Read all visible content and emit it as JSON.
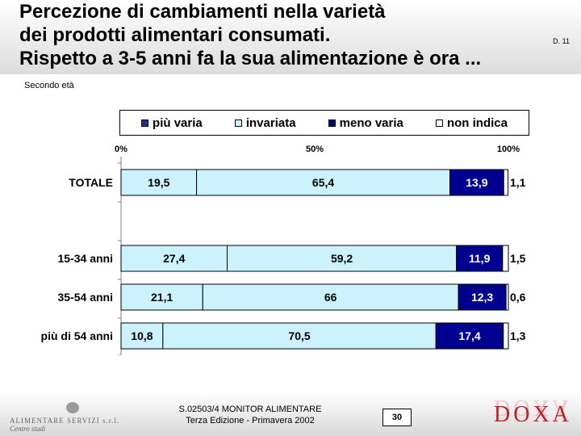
{
  "header": {
    "title_lines": [
      "Percezione di cambiamenti nella varietà",
      "dei prodotti alimentari consumati.",
      "Rispetto a 3-5 anni fa la sua alimentazione è ora ..."
    ],
    "code": "D. 11"
  },
  "subtitle": "Secondo età",
  "legend": [
    {
      "label": "più varia",
      "color": "#1f2fa0"
    },
    {
      "label": "invariata",
      "color": "#ccf2ff"
    },
    {
      "label": "meno varia",
      "color": "#000090"
    },
    {
      "label": "non indica",
      "color": "#ffffff"
    }
  ],
  "chart_data": {
    "type": "bar",
    "orientation": "horizontal",
    "stacked": true,
    "categories": [
      "TOTALE",
      "15-34 anni",
      "35-54 anni",
      "più di 54 anni"
    ],
    "series": [
      {
        "name": "più varia",
        "values": [
          19.5,
          27.4,
          21.1,
          10.8
        ],
        "labels": [
          "19,5",
          "27,4",
          "21,1",
          "10,8"
        ],
        "color": "#ccf2ff"
      },
      {
        "name": "invariata",
        "values": [
          65.4,
          59.2,
          66,
          70.5
        ],
        "labels": [
          "65,4",
          "59,2",
          "66",
          "70,5"
        ],
        "color": "#ccf2ff"
      },
      {
        "name": "meno varia",
        "values": [
          13.9,
          11.9,
          12.3,
          17.4
        ],
        "labels": [
          "13,9",
          "11,9",
          "12,3",
          "17,4"
        ],
        "color": "#000090"
      },
      {
        "name": "non indica",
        "values": [
          1.1,
          1.5,
          0.6,
          1.3
        ],
        "labels": [
          "1,1",
          "1,5",
          "0,6",
          "1,3"
        ],
        "color": "#ffffff"
      }
    ],
    "xlim": [
      0,
      100
    ],
    "xticks": [
      "0%",
      "50%",
      "100%"
    ],
    "legend_position": "top"
  },
  "footer": {
    "logo_name": "ALIMENTARE SERVIZI s.r.l.",
    "logo_sub": "Centro studi",
    "source_line1": "S.02503/4 MONITOR ALIMENTARE",
    "source_line2": "Terza Edizione - Primavera 2002",
    "page_number": "30",
    "brand": "DOXA"
  }
}
